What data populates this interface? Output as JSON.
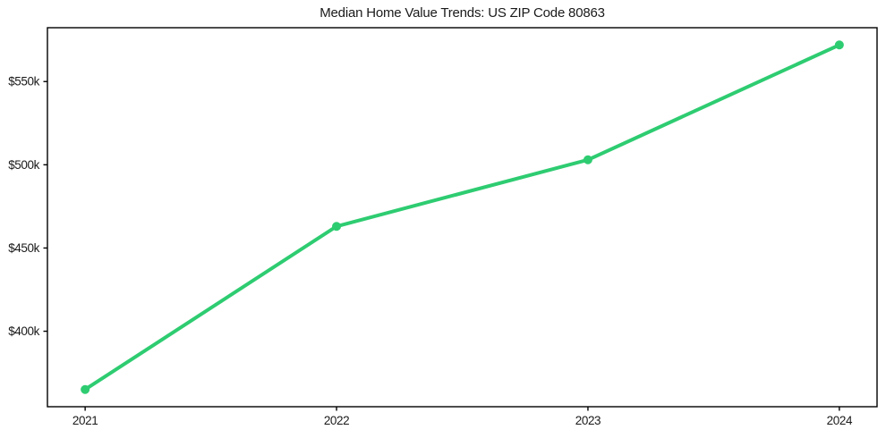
{
  "chart_data": {
    "type": "line",
    "title": "Median Home Value Trends: US ZIP Code 80863",
    "x": [
      2021,
      2022,
      2023,
      2024
    ],
    "x_tick_labels": [
      "2021",
      "2022",
      "2023",
      "2024"
    ],
    "series": [
      {
        "name": "Median Home Value",
        "values": [
          365000,
          463000,
          503000,
          572000
        ]
      }
    ],
    "y_ticks": [
      400000,
      450000,
      500000,
      550000
    ],
    "y_tick_labels": [
      "$400k",
      "$450k",
      "$500k",
      "$550k"
    ],
    "xlim": [
      2020.85,
      2024.15
    ],
    "ylim": [
      354650,
      582350
    ],
    "xlabel": "",
    "ylabel": "",
    "grid": false,
    "legend": "none",
    "line_color": "#2ecc71",
    "marker": "circle",
    "background_color": "#ffffff",
    "axis_color": "#000000",
    "text_color": "#1a1a1a"
  }
}
